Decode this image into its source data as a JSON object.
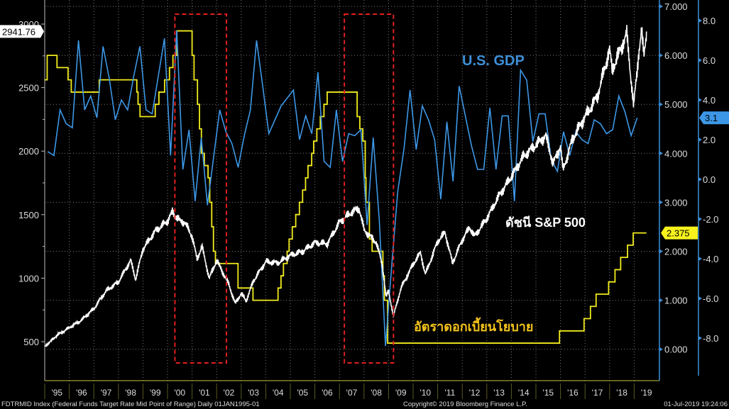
{
  "chart_data": {
    "type": "line",
    "title": "",
    "x_axis": {
      "range": [
        1995,
        2019.5
      ],
      "tick_labels": [
        "'95",
        "'96",
        "'97",
        "'98",
        "'99",
        "'00",
        "'01",
        "'02",
        "'03",
        "'04",
        "'05",
        "'06",
        "'07",
        "'08",
        "'09",
        "'10",
        "'11",
        "'12",
        "'13",
        "'14",
        "'15",
        "'16",
        "'17",
        "'18",
        "'19"
      ]
    },
    "axes": {
      "left": {
        "name": "S&P 500",
        "range": [
          300,
          3150
        ],
        "ticks": [
          500,
          1000,
          1500,
          2000,
          2500,
          3000
        ]
      },
      "middle": {
        "name": "Fed funds rate",
        "range": [
          -0.2,
          7.0
        ],
        "ticks": [
          "0.000",
          "1.000",
          "2.000",
          "3.000",
          "4.000",
          "5.000",
          "6.000",
          "7.000"
        ]
      },
      "right": {
        "name": "U.S. GDP",
        "range": [
          -9.5,
          9
        ],
        "ticks": [
          "-8.0",
          "-6.0",
          "-4.0",
          "-2.0",
          "0.0",
          "2.0",
          "4.0",
          "6.0",
          "8.0"
        ]
      }
    },
    "grid": true,
    "series": [
      {
        "name": "S&P 500",
        "axis": "left",
        "color": "#ffffff",
        "last_label": "2941.76",
        "points": [
          [
            1995.0,
            460
          ],
          [
            1995.5,
            550
          ],
          [
            1996.0,
            610
          ],
          [
            1996.5,
            670
          ],
          [
            1997.0,
            760
          ],
          [
            1997.5,
            900
          ],
          [
            1998.0,
            970
          ],
          [
            1998.5,
            1140
          ],
          [
            1998.7,
            990
          ],
          [
            1999.0,
            1230
          ],
          [
            1999.5,
            1370
          ],
          [
            2000.0,
            1450
          ],
          [
            2000.2,
            1520
          ],
          [
            2000.5,
            1450
          ],
          [
            2000.7,
            1440
          ],
          [
            2001.0,
            1330
          ],
          [
            2001.2,
            1150
          ],
          [
            2001.4,
            1250
          ],
          [
            2001.7,
            1000
          ],
          [
            2002.0,
            1140
          ],
          [
            2002.5,
            950
          ],
          [
            2002.75,
            800
          ],
          [
            2003.0,
            880
          ],
          [
            2003.2,
            820
          ],
          [
            2003.5,
            980
          ],
          [
            2004.0,
            1130
          ],
          [
            2004.5,
            1120
          ],
          [
            2005.0,
            1180
          ],
          [
            2005.5,
            1210
          ],
          [
            2006.0,
            1280
          ],
          [
            2006.5,
            1270
          ],
          [
            2007.0,
            1440
          ],
          [
            2007.5,
            1520
          ],
          [
            2007.8,
            1550
          ],
          [
            2008.0,
            1380
          ],
          [
            2008.5,
            1280
          ],
          [
            2008.75,
            1100
          ],
          [
            2008.9,
            850
          ],
          [
            2009.0,
            900
          ],
          [
            2009.2,
            700
          ],
          [
            2009.5,
            920
          ],
          [
            2010.0,
            1110
          ],
          [
            2010.3,
            1200
          ],
          [
            2010.5,
            1030
          ],
          [
            2011.0,
            1290
          ],
          [
            2011.3,
            1360
          ],
          [
            2011.6,
            1120
          ],
          [
            2012.0,
            1300
          ],
          [
            2012.3,
            1400
          ],
          [
            2012.5,
            1330
          ],
          [
            2013.0,
            1470
          ],
          [
            2013.5,
            1650
          ],
          [
            2014.0,
            1800
          ],
          [
            2014.5,
            1960
          ],
          [
            2015.0,
            2050
          ],
          [
            2015.4,
            2120
          ],
          [
            2015.7,
            1900
          ],
          [
            2016.0,
            2040
          ],
          [
            2016.1,
            1850
          ],
          [
            2016.5,
            2100
          ],
          [
            2017.0,
            2270
          ],
          [
            2017.5,
            2430
          ],
          [
            2018.0,
            2800
          ],
          [
            2018.1,
            2640
          ],
          [
            2018.7,
            2920
          ],
          [
            2018.98,
            2350
          ],
          [
            2019.2,
            2800
          ],
          [
            2019.3,
            2940
          ],
          [
            2019.4,
            2750
          ],
          [
            2019.5,
            2941.76
          ]
        ]
      },
      {
        "name": "Fed Funds Target Rate Mid Point",
        "axis": "middle",
        "color": "#f2ec1c",
        "last_label": "2.375",
        "steps": [
          [
            1995.0,
            5.5
          ],
          [
            1995.1,
            6.0
          ],
          [
            1995.5,
            5.75
          ],
          [
            1995.95,
            5.5
          ],
          [
            1996.08,
            5.25
          ],
          [
            1997.22,
            5.5
          ],
          [
            1998.75,
            5.25
          ],
          [
            1998.8,
            5.0
          ],
          [
            1998.88,
            4.75
          ],
          [
            1999.5,
            5.0
          ],
          [
            1999.65,
            5.25
          ],
          [
            1999.88,
            5.5
          ],
          [
            2000.08,
            5.75
          ],
          [
            2000.22,
            6.0
          ],
          [
            2000.38,
            6.5
          ],
          [
            2001.0,
            6.0
          ],
          [
            2001.08,
            5.5
          ],
          [
            2001.22,
            5.0
          ],
          [
            2001.3,
            4.5
          ],
          [
            2001.38,
            4.0
          ],
          [
            2001.5,
            3.75
          ],
          [
            2001.65,
            3.5
          ],
          [
            2001.72,
            3.0
          ],
          [
            2001.8,
            2.5
          ],
          [
            2001.87,
            2.0
          ],
          [
            2001.95,
            1.75
          ],
          [
            2002.87,
            1.25
          ],
          [
            2003.48,
            1.0
          ],
          [
            2004.5,
            1.25
          ],
          [
            2004.62,
            1.5
          ],
          [
            2004.72,
            1.75
          ],
          [
            2004.87,
            2.0
          ],
          [
            2004.95,
            2.25
          ],
          [
            2005.08,
            2.5
          ],
          [
            2005.22,
            2.75
          ],
          [
            2005.37,
            3.0
          ],
          [
            2005.5,
            3.25
          ],
          [
            2005.62,
            3.5
          ],
          [
            2005.72,
            3.75
          ],
          [
            2005.87,
            4.0
          ],
          [
            2005.95,
            4.25
          ],
          [
            2006.08,
            4.5
          ],
          [
            2006.22,
            4.75
          ],
          [
            2006.37,
            5.0
          ],
          [
            2006.5,
            5.25
          ],
          [
            2007.72,
            4.75
          ],
          [
            2007.83,
            4.5
          ],
          [
            2007.95,
            4.25
          ],
          [
            2008.05,
            3.5
          ],
          [
            2008.08,
            3.0
          ],
          [
            2008.22,
            2.25
          ],
          [
            2008.33,
            2.0
          ],
          [
            2008.77,
            1.5
          ],
          [
            2008.83,
            1.0
          ],
          [
            2008.96,
            0.125
          ],
          [
            2015.96,
            0.375
          ],
          [
            2016.96,
            0.625
          ],
          [
            2017.22,
            0.875
          ],
          [
            2017.45,
            1.125
          ],
          [
            2017.96,
            1.375
          ],
          [
            2018.22,
            1.625
          ],
          [
            2018.45,
            1.875
          ],
          [
            2018.73,
            2.125
          ],
          [
            2018.96,
            2.375
          ],
          [
            2019.5,
            2.375
          ]
        ]
      },
      {
        "name": "U.S. GDP",
        "axis": "right",
        "color": "#3d97e6",
        "last_label": "3.1",
        "quarterly_from": 1995.0,
        "values": [
          1.4,
          1.2,
          3.5,
          2.8,
          2.6,
          7.0,
          3.5,
          4.2,
          3.1,
          6.7,
          5.1,
          3.0,
          4.0,
          3.5,
          5.2,
          6.7,
          3.5,
          3.3,
          5.2,
          7.1,
          1.2,
          7.5,
          0.5,
          2.5,
          -1.1,
          2.1,
          -1.3,
          1.1,
          3.5,
          2.4,
          1.8,
          0.6,
          2.2,
          3.5,
          7.0,
          4.7,
          2.3,
          3.0,
          3.7,
          4.1,
          4.5,
          2.0,
          3.2,
          2.3,
          5.4,
          0.9,
          0.6,
          3.5,
          0.9,
          2.3,
          2.2,
          2.5,
          -2.3,
          2.1,
          -2.1,
          -8.4,
          -4.4,
          -0.6,
          1.5,
          4.5,
          1.5,
          3.7,
          3.0,
          2.0,
          -1.0,
          2.9,
          -0.1,
          4.7,
          3.2,
          1.7,
          0.5,
          0.5,
          3.6,
          0.5,
          3.2,
          3.2,
          -1.1,
          5.5,
          5.0,
          1.9,
          3.3,
          3.3,
          1.0,
          0.4,
          2.4,
          1.2,
          2.4,
          2.0,
          1.8,
          3.0,
          2.8,
          2.3,
          2.5,
          4.2,
          3.4,
          2.2,
          3.1
        ]
      }
    ],
    "annotations": {
      "gdp": "U.S. GDP",
      "sp500": "ดัชนี S&P 500",
      "rate": "อัตราดอกเบี้ยนโยบาย"
    },
    "highlight_periods": [
      [
        2000.3,
        2002.4
      ],
      [
        2007.2,
        2009.2
      ]
    ]
  },
  "footer": {
    "left": "FDTRMID Index (Federal Funds Target Rate Mid Point of Range)  Daily 01JAN1995-01",
    "center": "Copyright© 2019 Bloomberg Finance L.P.",
    "right": "01-Jul-2019 19:24:06"
  }
}
